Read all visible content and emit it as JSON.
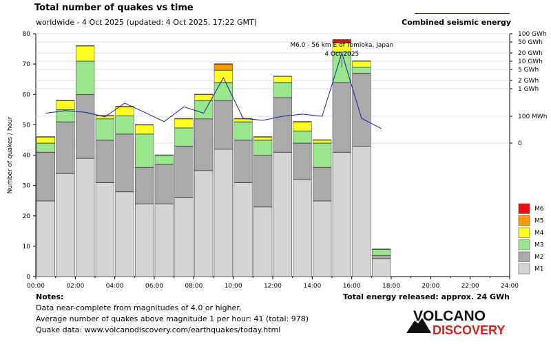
{
  "header": {
    "title": "Total number of quakes vs time",
    "subtitle": "worldwide -  4 Oct 2025 (updated: 4 Oct 2025, 17:22 GMT)",
    "legend_line_label": "Combined seismic energy"
  },
  "notes": {
    "title": "Notes:",
    "lines": [
      "Data near-complete from magnitudes of 4.0 or higher.",
      "Average number of quakes above magnitude 1 per hour: 41 (total: 978)",
      "Quake data: www.volcanodiscovery.com/earthquakes/today.html"
    ],
    "total_energy": "Total energy released: approx. 24 GWh"
  },
  "logo": {
    "line1": "VOLCANO",
    "line2": "DISCOVERY"
  },
  "colors": {
    "M1": "#d4d4d4",
    "M2": "#aaaaaa",
    "M3": "#99e68c",
    "M4": "#ffff22",
    "M5": "#ff9900",
    "M6": "#ee1111",
    "energy_line": "#1a1aa6",
    "logo_red": "#d42020"
  },
  "chart_data": {
    "type": "bar",
    "stacked": true,
    "ylabel": "Number of quakes / hour",
    "ylim": [
      0,
      80
    ],
    "yticks": [
      0,
      10,
      20,
      30,
      40,
      50,
      60,
      70,
      80
    ],
    "xlim": [
      0,
      24
    ],
    "x_tick_labels": [
      "00:00",
      "02:00",
      "04:00",
      "06:00",
      "08:00",
      "10:00",
      "12:00",
      "14:00",
      "16:00",
      "18:00",
      "20:00",
      "22:00",
      "24:00"
    ],
    "grid": true,
    "hours": [
      0,
      1,
      2,
      3,
      4,
      5,
      6,
      7,
      8,
      9,
      10,
      11,
      12,
      13,
      14,
      15,
      16,
      17
    ],
    "series": [
      {
        "name": "M1",
        "values": [
          25,
          34,
          39,
          31,
          28,
          24,
          24,
          26,
          35,
          42,
          31,
          23,
          41,
          32,
          25,
          41,
          43,
          6
        ]
      },
      {
        "name": "M2",
        "values": [
          16,
          17,
          21,
          14,
          19,
          12,
          13,
          17,
          17,
          16,
          14,
          17,
          18,
          12,
          11,
          23,
          24,
          1
        ]
      },
      {
        "name": "M3",
        "values": [
          3,
          4,
          11,
          7,
          6,
          11,
          3,
          6,
          6,
          6,
          6,
          5,
          5,
          4,
          8,
          10,
          2,
          2
        ]
      },
      {
        "name": "M4",
        "values": [
          2,
          3,
          5,
          1,
          3,
          3,
          0,
          3,
          2,
          4,
          1,
          1,
          2,
          3,
          1,
          3,
          2,
          0
        ]
      },
      {
        "name": "M5",
        "values": [
          0,
          0,
          0,
          0,
          0,
          0,
          0,
          0,
          0,
          2,
          0,
          0,
          0,
          0,
          0,
          0,
          0,
          0
        ]
      },
      {
        "name": "M6",
        "values": [
          0,
          0,
          0,
          0,
          0,
          0,
          0,
          0,
          0,
          0,
          0,
          0,
          0,
          0,
          0,
          1,
          0,
          0
        ]
      }
    ],
    "legend_entries": [
      "M6",
      "M5",
      "M4",
      "M3",
      "M2",
      "M1"
    ],
    "legend_position": "right",
    "energy": {
      "name": "Combined seismic energy",
      "hours": [
        0.5,
        1.5,
        2.5,
        3.5,
        4.5,
        5.5,
        6.5,
        7.5,
        8.5,
        9.5,
        10.5,
        11.5,
        12.5,
        13.5,
        14.5,
        15.5,
        16.5,
        17.5
      ],
      "values_mwh": [
        130,
        160,
        140,
        90,
        300,
        140,
        40,
        220,
        130,
        2500,
        70,
        50,
        100,
        120,
        100,
        20000,
        70,
        12
      ],
      "right_axis_ticks": [
        "100 GWh",
        "50 GWh",
        "20 GWh",
        "10 GWh",
        "5 GWh",
        "2 GWh",
        "1 GWh",
        "100 MWh",
        "0"
      ],
      "right_axis_values_mwh": [
        100000,
        50000,
        20000,
        10000,
        5000,
        2000,
        1000,
        100,
        0
      ]
    },
    "annotation": {
      "line1": "M6.0 - 56 km E of Tomioka, Japan",
      "line2": "4 Oct 2025",
      "hour": 15.5
    }
  }
}
